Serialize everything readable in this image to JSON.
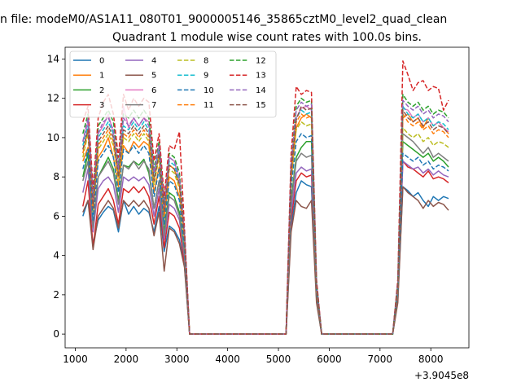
{
  "chart_data": {
    "type": "line",
    "suptitle": "n file: modeM0/AS1A11_080T01_9000005146_35865cztM0_level2_quad_clean",
    "title": "Quadrant 1 module wise count rates with 100.0s bins.",
    "xlabel": "",
    "ylabel": "",
    "x_offset_label": "+3.9045e8",
    "xlim": [
      800,
      8750
    ],
    "ylim": [
      -0.7,
      14.6
    ],
    "x_ticks": [
      1000,
      2000,
      3000,
      4000,
      5000,
      6000,
      7000,
      8000
    ],
    "x_tick_labels": [
      "1000",
      "2000",
      "3000",
      "4000",
      "5000",
      "6000",
      "7000",
      "8000"
    ],
    "y_ticks": [
      0,
      2,
      4,
      6,
      8,
      10,
      12,
      14
    ],
    "y_tick_labels": [
      "0",
      "2",
      "4",
      "6",
      "8",
      "10",
      "12",
      "14"
    ],
    "legend": {
      "placement": "top-left",
      "columns": 4
    },
    "x": [
      1150,
      1250,
      1350,
      1450,
      1550,
      1650,
      1750,
      1850,
      1950,
      2050,
      2150,
      2250,
      2350,
      2450,
      2550,
      2650,
      2750,
      2850,
      2950,
      3050,
      3150,
      3250,
      3350,
      5150,
      5250,
      5350,
      5450,
      5550,
      5650,
      5750,
      5850,
      5950,
      7250,
      7350,
      7450,
      7550,
      7650,
      7750,
      7850,
      7950,
      8050,
      8150,
      8250,
      8350
    ],
    "series": [
      {
        "name": "0",
        "style": "solid",
        "color": "#1f77b4",
        "values": [
          6.0,
          6.8,
          4.6,
          5.8,
          6.2,
          6.5,
          6.3,
          5.2,
          6.8,
          6.1,
          6.5,
          6.1,
          6.4,
          6.2,
          5.2,
          6.5,
          4.2,
          5.5,
          5.3,
          4.8,
          3.5,
          0,
          0,
          0,
          5.5,
          7.2,
          7.8,
          7.6,
          7.5,
          1.8,
          0,
          0,
          0,
          1.8,
          7.5,
          7.3,
          7.0,
          7.2,
          6.8,
          6.5,
          7.0,
          6.8,
          7.0,
          6.9
        ]
      },
      {
        "name": "1",
        "style": "solid",
        "color": "#ff7f0e",
        "values": [
          8.8,
          9.5,
          6.4,
          9.0,
          9.4,
          10.0,
          9.0,
          7.5,
          9.6,
          9.2,
          9.8,
          9.5,
          9.8,
          9.6,
          7.2,
          8.5,
          5.8,
          8.0,
          7.8,
          7.0,
          4.8,
          0,
          0,
          0,
          7.8,
          10.5,
          11.0,
          11.2,
          11.0,
          2.5,
          0,
          0,
          0,
          2.5,
          11.0,
          11.2,
          10.8,
          11.0,
          10.5,
          11.0,
          10.6,
          10.8,
          10.5,
          10.2
        ]
      },
      {
        "name": "2",
        "style": "solid",
        "color": "#2ca02c",
        "values": [
          8.0,
          9.2,
          5.4,
          8.0,
          8.5,
          9.0,
          8.4,
          6.8,
          8.6,
          8.5,
          8.8,
          8.6,
          8.9,
          8.2,
          6.4,
          7.8,
          5.2,
          7.2,
          7.0,
          6.2,
          4.2,
          0,
          0,
          0,
          6.8,
          9.0,
          9.5,
          9.8,
          9.8,
          2.2,
          0,
          0,
          0,
          2.2,
          9.8,
          9.6,
          9.4,
          9.2,
          9.0,
          9.2,
          8.8,
          9.0,
          8.8,
          8.5
        ]
      },
      {
        "name": "3",
        "style": "solid",
        "color": "#d62728",
        "values": [
          6.5,
          7.8,
          4.4,
          6.6,
          7.0,
          7.4,
          6.8,
          5.6,
          7.4,
          7.2,
          7.5,
          7.2,
          7.5,
          7.0,
          5.6,
          7.0,
          4.4,
          6.2,
          6.0,
          5.4,
          3.6,
          0,
          0,
          0,
          5.8,
          7.8,
          8.2,
          8.0,
          8.1,
          1.9,
          0,
          0,
          0,
          1.9,
          8.8,
          8.5,
          8.4,
          8.2,
          8.0,
          8.3,
          7.9,
          8.0,
          7.9,
          7.7
        ]
      },
      {
        "name": "4",
        "style": "solid",
        "color": "#9467bd",
        "values": [
          7.2,
          8.4,
          5.2,
          7.4,
          7.8,
          8.0,
          7.6,
          6.2,
          8.0,
          7.8,
          8.0,
          7.8,
          8.0,
          7.6,
          6.0,
          7.4,
          4.8,
          6.6,
          6.4,
          5.8,
          3.9,
          0,
          0,
          0,
          6.2,
          8.2,
          8.5,
          8.3,
          8.4,
          2.0,
          0,
          0,
          0,
          2.0,
          8.8,
          8.6,
          8.4,
          8.5,
          8.2,
          8.4,
          8.1,
          8.3,
          8.1,
          8.0
        ]
      },
      {
        "name": "5",
        "style": "solid",
        "color": "#8c564b",
        "values": [
          6.2,
          6.8,
          4.3,
          6.0,
          6.4,
          6.8,
          6.4,
          5.4,
          6.8,
          6.5,
          6.8,
          6.5,
          6.8,
          6.4,
          5.0,
          6.2,
          3.2,
          5.4,
          5.2,
          4.6,
          3.4,
          0,
          0,
          0,
          5.2,
          6.8,
          6.5,
          6.4,
          6.8,
          1.6,
          0,
          0,
          0,
          1.6,
          7.5,
          7.2,
          7.0,
          6.8,
          6.4,
          6.8,
          6.5,
          6.7,
          6.6,
          6.3
        ]
      },
      {
        "name": "6",
        "style": "solid",
        "color": "#e377c2",
        "values": [
          9.8,
          10.8,
          6.6,
          10.2,
          10.6,
          11.2,
          10.2,
          8.4,
          11.6,
          10.5,
          11.0,
          10.6,
          11.0,
          10.8,
          8.2,
          9.6,
          6.4,
          9.0,
          8.8,
          7.8,
          5.0,
          0,
          0,
          0,
          8.5,
          11.0,
          11.5,
          11.6,
          11.4,
          2.6,
          0,
          0,
          0,
          2.6,
          11.5,
          11.4,
          11.0,
          11.2,
          10.8,
          11.0,
          10.6,
          10.8,
          10.5,
          10.3
        ]
      },
      {
        "name": "7",
        "style": "solid",
        "color": "#7f7f7f",
        "values": [
          7.8,
          8.8,
          5.4,
          8.0,
          8.4,
          8.8,
          8.2,
          6.6,
          8.6,
          8.4,
          8.8,
          8.4,
          8.8,
          8.4,
          6.4,
          7.8,
          5.0,
          7.0,
          6.8,
          6.0,
          4.0,
          0,
          0,
          0,
          6.6,
          8.8,
          9.2,
          9.0,
          9.1,
          2.1,
          0,
          0,
          0,
          2.1,
          10.2,
          10.0,
          9.8,
          9.5,
          9.2,
          9.5,
          9.0,
          9.2,
          9.0,
          8.8
        ]
      },
      {
        "name": "8",
        "style": "dashed",
        "color": "#bcbd22",
        "values": [
          9.0,
          10.2,
          6.2,
          9.4,
          9.8,
          10.2,
          9.6,
          7.8,
          10.0,
          9.8,
          10.2,
          9.8,
          10.2,
          9.8,
          7.6,
          9.0,
          6.0,
          8.4,
          8.2,
          7.4,
          4.8,
          0,
          0,
          0,
          8.0,
          10.4,
          10.8,
          10.6,
          10.7,
          2.4,
          0,
          0,
          0,
          2.4,
          10.5,
          10.2,
          10.0,
          10.2,
          9.8,
          10.0,
          9.6,
          9.8,
          9.7,
          9.5
        ]
      },
      {
        "name": "9",
        "style": "dashed",
        "color": "#17becf",
        "values": [
          9.6,
          10.6,
          6.6,
          10.0,
          10.4,
          10.8,
          10.2,
          8.2,
          10.6,
          10.4,
          10.8,
          10.4,
          10.8,
          10.4,
          8.0,
          9.4,
          6.2,
          8.8,
          8.6,
          7.8,
          5.0,
          0,
          0,
          0,
          8.4,
          11.0,
          11.4,
          11.2,
          11.3,
          2.5,
          0,
          0,
          0,
          2.5,
          11.6,
          11.2,
          11.0,
          11.2,
          10.8,
          11.0,
          10.6,
          10.8,
          10.7,
          10.4
        ]
      },
      {
        "name": "10",
        "style": "dashed",
        "color": "#1f77b4",
        "values": [
          8.4,
          9.4,
          5.8,
          8.8,
          9.2,
          9.6,
          9.0,
          7.2,
          9.4,
          9.2,
          9.6,
          9.2,
          9.6,
          9.2,
          7.0,
          8.4,
          5.6,
          7.8,
          7.6,
          6.8,
          4.4,
          0,
          0,
          0,
          7.4,
          9.8,
          10.2,
          10.0,
          10.1,
          2.3,
          0,
          0,
          0,
          2.3,
          9.2,
          9.0,
          8.8,
          9.0,
          8.6,
          8.8,
          8.4,
          8.6,
          8.5,
          8.3
        ]
      },
      {
        "name": "11",
        "style": "dashed",
        "color": "#ff7f0e",
        "values": [
          9.2,
          10.4,
          6.4,
          9.6,
          10.0,
          10.4,
          9.8,
          8.0,
          10.2,
          10.0,
          10.4,
          10.0,
          10.4,
          10.0,
          7.8,
          9.2,
          6.0,
          8.6,
          8.4,
          7.6,
          4.9,
          0,
          0,
          0,
          8.2,
          10.8,
          11.2,
          11.0,
          11.1,
          2.4,
          0,
          0,
          0,
          2.4,
          11.2,
          10.8,
          10.6,
          10.8,
          10.4,
          10.6,
          10.2,
          10.4,
          10.3,
          10.0
        ]
      },
      {
        "name": "12",
        "style": "dashed",
        "color": "#2ca02c",
        "values": [
          10.2,
          11.2,
          7.0,
          10.6,
          11.0,
          11.4,
          10.8,
          8.6,
          11.2,
          11.0,
          11.4,
          11.0,
          11.4,
          11.0,
          8.4,
          9.8,
          6.6,
          9.2,
          9.0,
          8.2,
          5.2,
          0,
          0,
          0,
          8.8,
          11.6,
          12.0,
          11.8,
          11.9,
          2.6,
          0,
          0,
          0,
          2.6,
          12.2,
          11.8,
          11.6,
          11.8,
          11.4,
          11.6,
          11.2,
          11.4,
          11.3,
          11.0
        ]
      },
      {
        "name": "13",
        "style": "dashed",
        "color": "#d62728",
        "values": [
          10.8,
          11.6,
          7.4,
          11.0,
          11.8,
          12.2,
          11.2,
          9.0,
          12.2,
          11.4,
          12.0,
          11.6,
          12.0,
          11.8,
          8.8,
          10.2,
          7.0,
          9.6,
          9.4,
          10.3,
          5.4,
          0,
          0,
          0,
          9.2,
          12.6,
          12.2,
          12.4,
          12.3,
          2.8,
          0,
          0,
          0,
          2.8,
          13.9,
          13.2,
          12.4,
          12.8,
          12.9,
          12.4,
          12.6,
          12.5,
          11.4,
          11.9
        ]
      },
      {
        "name": "14",
        "style": "dashed",
        "color": "#9467bd",
        "values": [
          9.8,
          11.0,
          6.8,
          10.2,
          10.8,
          11.0,
          10.4,
          8.4,
          11.0,
          10.6,
          11.0,
          10.6,
          11.0,
          10.6,
          8.2,
          9.6,
          6.4,
          9.0,
          8.8,
          8.0,
          5.1,
          0,
          0,
          0,
          8.6,
          11.4,
          11.8,
          11.6,
          11.7,
          2.6,
          0,
          0,
          0,
          2.6,
          11.9,
          11.6,
          11.4,
          11.6,
          11.2,
          11.4,
          11.0,
          11.2,
          11.1,
          10.8
        ]
      },
      {
        "name": "15",
        "style": "dashed",
        "color": "#8c564b",
        "values": [
          9.4,
          10.4,
          6.4,
          9.8,
          10.2,
          10.6,
          10.0,
          8.0,
          10.4,
          10.2,
          10.6,
          10.2,
          10.6,
          10.2,
          7.8,
          9.2,
          6.2,
          8.6,
          8.4,
          7.6,
          4.9,
          0,
          0,
          0,
          8.2,
          10.9,
          11.6,
          11.4,
          11.5,
          2.5,
          0,
          0,
          0,
          2.5,
          11.4,
          11.0,
          10.8,
          11.0,
          10.6,
          10.8,
          10.4,
          10.6,
          10.5,
          10.2
        ]
      }
    ]
  }
}
